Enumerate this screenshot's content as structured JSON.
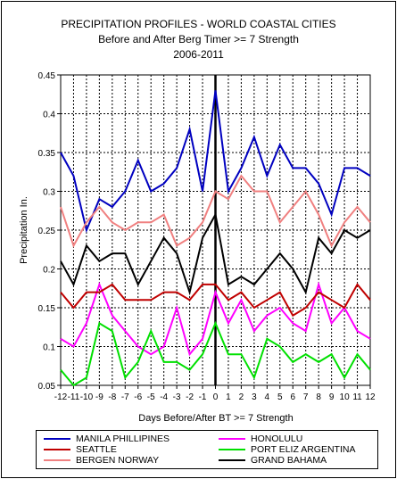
{
  "chart_data": {
    "type": "line",
    "title": "PRECIPITATION PROFILES - WORLD COASTAL CITIES",
    "subtitle": "Before and After Berg Timer >= 7 Strength",
    "subtitle2": "2006-2011",
    "xlabel": "Days Before/After BT >= 7 Strength",
    "ylabel": "Precipitation In.",
    "ylim": [
      0.05,
      0.45
    ],
    "yticks": [
      "0.05",
      "0.1",
      "0.15",
      "0.2",
      "0.25",
      "0.3",
      "0.35",
      "0.4",
      "0.45"
    ],
    "x": [
      -12,
      -11,
      -10,
      -9,
      -8,
      -7,
      -6,
      -5,
      -4,
      -3,
      -2,
      -1,
      0,
      1,
      2,
      3,
      4,
      5,
      6,
      7,
      8,
      9,
      10,
      11,
      12
    ],
    "xticks": [
      "-12",
      "-11",
      "-10",
      "-9",
      "-8",
      "-7",
      "-6",
      "-5",
      "-4",
      "-3",
      "-2",
      "-1",
      "0",
      "1",
      "2",
      "3",
      "4",
      "5",
      "6",
      "7",
      "8",
      "9",
      "10",
      "11",
      "12"
    ],
    "grid": true,
    "legend_position": "bottom",
    "series": [
      {
        "name": "MANILA PHILLIPINES",
        "color": "#0000c0",
        "values": [
          0.35,
          0.32,
          0.25,
          0.29,
          0.28,
          0.3,
          0.34,
          0.3,
          0.31,
          0.33,
          0.38,
          0.3,
          0.43,
          0.3,
          0.33,
          0.37,
          0.32,
          0.36,
          0.33,
          0.33,
          0.31,
          0.27,
          0.33,
          0.33,
          0.32
        ]
      },
      {
        "name": "HONOLULU",
        "color": "#ff00ff",
        "values": [
          0.11,
          0.1,
          0.13,
          0.18,
          0.14,
          0.12,
          0.1,
          0.09,
          0.1,
          0.15,
          0.09,
          0.11,
          0.17,
          0.13,
          0.16,
          0.12,
          0.14,
          0.15,
          0.13,
          0.12,
          0.18,
          0.13,
          0.15,
          0.12,
          0.11
        ]
      },
      {
        "name": "SEATTLE",
        "color": "#c00000",
        "values": [
          0.17,
          0.15,
          0.17,
          0.17,
          0.18,
          0.16,
          0.16,
          0.16,
          0.17,
          0.17,
          0.16,
          0.18,
          0.18,
          0.16,
          0.17,
          0.15,
          0.16,
          0.17,
          0.14,
          0.15,
          0.17,
          0.16,
          0.15,
          0.18,
          0.16
        ]
      },
      {
        "name": "PORT ELIZ ARGENTINA",
        "color": "#00e000",
        "values": [
          0.07,
          0.05,
          0.06,
          0.13,
          0.12,
          0.06,
          0.08,
          0.12,
          0.08,
          0.08,
          0.07,
          0.09,
          0.13,
          0.09,
          0.09,
          0.06,
          0.11,
          0.1,
          0.08,
          0.09,
          0.08,
          0.09,
          0.06,
          0.09,
          0.07
        ]
      },
      {
        "name": "BERGEN NORWAY",
        "color": "#f08080",
        "values": [
          0.28,
          0.23,
          0.26,
          0.28,
          0.26,
          0.25,
          0.26,
          0.26,
          0.27,
          0.23,
          0.24,
          0.26,
          0.3,
          0.29,
          0.32,
          0.3,
          0.3,
          0.26,
          0.28,
          0.3,
          0.27,
          0.23,
          0.26,
          0.28,
          0.26
        ]
      },
      {
        "name": "GRAND BAHAMA",
        "color": "#000000",
        "values": [
          0.21,
          0.18,
          0.23,
          0.21,
          0.22,
          0.22,
          0.18,
          0.21,
          0.24,
          0.22,
          0.17,
          0.24,
          0.27,
          0.18,
          0.19,
          0.18,
          0.2,
          0.22,
          0.2,
          0.17,
          0.24,
          0.22,
          0.25,
          0.24,
          0.25
        ]
      }
    ]
  }
}
